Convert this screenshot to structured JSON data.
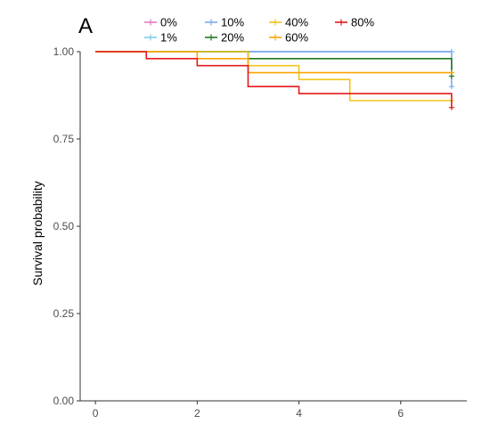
{
  "chart_data": {
    "type": "line",
    "step": true,
    "panel_label": "A",
    "title": "",
    "xlabel": "",
    "ylabel": "Survival probability",
    "xlim": [
      -0.3,
      7.3
    ],
    "ylim": [
      0,
      1
    ],
    "x_ticks": [
      0,
      2,
      4,
      6
    ],
    "y_ticks": [
      0.0,
      0.25,
      0.5,
      0.75,
      1.0
    ],
    "x_tick_labels": [
      "0",
      "2",
      "4",
      "6"
    ],
    "y_tick_labels": [
      "0.00",
      "0.25",
      "0.50",
      "0.75",
      "1.00"
    ],
    "grid": false,
    "legend_position": "top",
    "series": [
      {
        "name": "0%",
        "color": "#e377c2",
        "x": [
          0,
          7
        ],
        "y": [
          1.0,
          1.0
        ],
        "censor": {
          "x": 7,
          "y": 1.0
        }
      },
      {
        "name": "1%",
        "color": "#7fcdea",
        "x": [
          0,
          7
        ],
        "y": [
          1.0,
          1.0
        ],
        "censor": {
          "x": 7,
          "y": 1.0
        }
      },
      {
        "name": "10%",
        "color": "#7aaaf0",
        "x": [
          0,
          7,
          7
        ],
        "y": [
          1.0,
          1.0,
          0.9
        ],
        "censor": {
          "x": 7,
          "y": 0.9
        }
      },
      {
        "name": "20%",
        "color": "#1f7a1f",
        "x": [
          0,
          1,
          3,
          7,
          7
        ],
        "y": [
          1.0,
          1.0,
          0.98,
          0.98,
          0.93
        ],
        "censor": {
          "x": 7,
          "y": 0.93
        }
      },
      {
        "name": "40%",
        "color": "#f0c419",
        "x": [
          0,
          2,
          3,
          4,
          5,
          7
        ],
        "y": [
          1.0,
          1.0,
          0.96,
          0.92,
          0.86,
          0.86
        ],
        "censor": {
          "x": 7,
          "y": 0.86
        }
      },
      {
        "name": "60%",
        "color": "#ffa500",
        "x": [
          0,
          2,
          3,
          7
        ],
        "y": [
          1.0,
          0.98,
          0.94,
          0.94
        ],
        "censor": {
          "x": 7,
          "y": 0.94
        }
      },
      {
        "name": "80%",
        "color": "#e31a1c",
        "x": [
          0,
          1,
          2,
          3,
          4,
          7,
          7
        ],
        "y": [
          1.0,
          0.98,
          0.96,
          0.9,
          0.88,
          0.88,
          0.84
        ],
        "censor": {
          "x": 7,
          "y": 0.84
        }
      }
    ]
  }
}
